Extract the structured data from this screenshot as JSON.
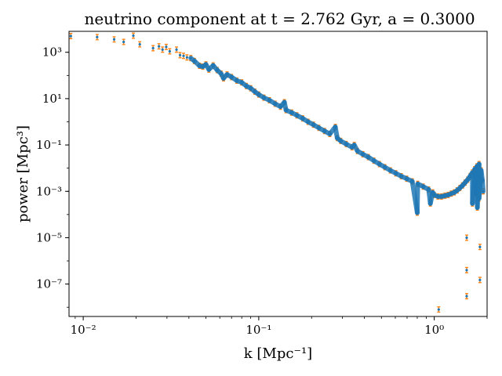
{
  "chart_data": {
    "type": "scatter",
    "title": "neutrino component at t = 2.762 Gyr, a = 0.3000",
    "xlabel": "k [Mpc⁻¹]",
    "ylabel": "power [Mpc³]",
    "xscale": "log",
    "yscale": "log",
    "xlim": [
      0.0083,
      2.0
    ],
    "ylim": [
      4e-09,
      8000
    ],
    "x_ticks": [
      {
        "value": 0.01,
        "label": "10⁻²"
      },
      {
        "value": 0.1,
        "label": "10⁻¹"
      },
      {
        "value": 1,
        "label": "10⁰"
      }
    ],
    "y_ticks": [
      {
        "value": 1000,
        "label": "10³"
      },
      {
        "value": 10,
        "label": "10¹"
      },
      {
        "value": 0.1,
        "label": "10⁻¹"
      },
      {
        "value": 0.001,
        "label": "10⁻³"
      },
      {
        "value": 1e-05,
        "label": "10⁻⁵"
      },
      {
        "value": 1e-07,
        "label": "10⁻⁷"
      }
    ],
    "grid": false,
    "colors": {
      "errorbar": "#ff7f0e",
      "marker": "#1f77b4"
    },
    "series": [
      {
        "points": [
          [
            0.0085,
            5000
          ],
          [
            0.012,
            4500
          ],
          [
            0.015,
            3600
          ],
          [
            0.017,
            2800
          ],
          [
            0.0193,
            5200
          ],
          [
            0.021,
            2200
          ],
          [
            0.025,
            1500
          ],
          [
            0.027,
            1800
          ],
          [
            0.0283,
            1300
          ],
          [
            0.0297,
            1700
          ],
          [
            0.0311,
            1100
          ],
          [
            0.034,
            1300
          ],
          [
            0.0356,
            750
          ],
          [
            0.0373,
            700
          ],
          [
            0.039,
            600
          ],
          [
            0.041,
            560
          ],
          [
            0.043,
            420
          ],
          [
            0.046,
            260
          ],
          [
            0.048,
            240
          ],
          [
            0.05,
            300
          ],
          [
            0.052,
            180
          ],
          [
            0.055,
            270
          ],
          [
            0.058,
            170
          ],
          [
            0.061,
            120
          ],
          [
            0.063,
            75
          ],
          [
            0.066,
            110
          ],
          [
            0.07,
            85
          ],
          [
            0.075,
            60
          ],
          [
            0.08,
            50
          ],
          [
            0.085,
            35
          ],
          [
            0.09,
            28
          ],
          [
            0.095,
            20
          ],
          [
            0.1,
            15
          ],
          [
            0.107,
            11
          ],
          [
            0.115,
            8.5
          ],
          [
            0.124,
            6
          ],
          [
            0.133,
            4.5
          ],
          [
            0.14,
            7
          ],
          [
            0.143,
            3.2
          ],
          [
            0.154,
            2.5
          ],
          [
            0.165,
            1.9
          ],
          [
            0.178,
            1.4
          ],
          [
            0.191,
            1.0
          ],
          [
            0.205,
            0.75
          ],
          [
            0.22,
            0.55
          ],
          [
            0.237,
            0.4
          ],
          [
            0.254,
            0.3
          ],
          [
            0.273,
            0.6
          ],
          [
            0.28,
            0.2
          ],
          [
            0.293,
            0.15
          ],
          [
            0.315,
            0.11
          ],
          [
            0.34,
            0.08
          ],
          [
            0.35,
            0.1
          ],
          [
            0.365,
            0.055
          ],
          [
            0.392,
            0.04
          ],
          [
            0.421,
            0.03
          ],
          [
            0.453,
            0.021
          ],
          [
            0.487,
            0.015
          ],
          [
            0.523,
            0.011
          ],
          [
            0.562,
            0.008
          ],
          [
            0.604,
            0.006
          ],
          [
            0.649,
            0.0045
          ],
          [
            0.697,
            0.0035
          ],
          [
            0.749,
            0.0027
          ],
          [
            0.805,
            0.0021
          ],
          [
            0.865,
            0.0016
          ],
          [
            0.929,
            0.0012
          ],
          [
            0.98,
            0.0009
          ],
          [
            1.0,
            0.0007
          ],
          [
            1.05,
            0.0006
          ],
          [
            1.1,
            0.0006
          ],
          [
            1.15,
            0.00065
          ],
          [
            1.2,
            0.0007
          ],
          [
            1.25,
            0.0008
          ],
          [
            1.3,
            0.0009
          ],
          [
            1.35,
            0.0011
          ],
          [
            1.4,
            0.0014
          ],
          [
            1.45,
            0.0018
          ],
          [
            1.5,
            0.0024
          ],
          [
            1.55,
            0.0032
          ],
          [
            1.6,
            0.0045
          ],
          [
            1.65,
            0.0065
          ],
          [
            1.7,
            0.009
          ],
          [
            1.75,
            0.012
          ],
          [
            1.8,
            0.015
          ],
          [
            1.85,
            0.008
          ],
          [
            1.88,
            0.003
          ],
          [
            1.9,
            0.001
          ],
          [
            0.8,
            0.00012
          ],
          [
            0.95,
            0.0003
          ],
          [
            1.53,
            1e-05
          ],
          [
            1.53,
            4e-07
          ],
          [
            1.53,
            3e-08
          ],
          [
            1.65,
            0.0003
          ],
          [
            1.73,
            0.0008
          ],
          [
            1.82,
            4e-06
          ],
          [
            1.82,
            1.5e-07
          ],
          [
            1.06,
            8e-09
          ],
          [
            1.8,
            0.0005
          ],
          [
            1.76,
            0.0002
          ]
        ]
      }
    ]
  }
}
